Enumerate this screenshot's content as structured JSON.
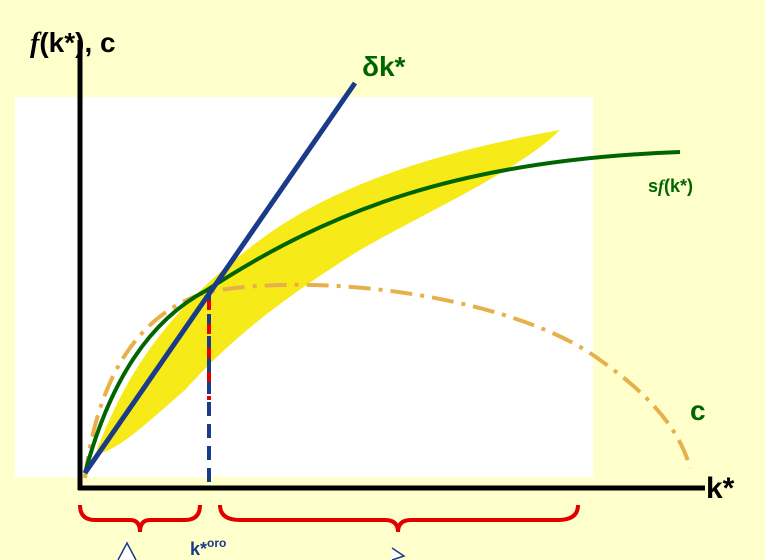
{
  "diagram": {
    "y_axis_label": [
      "f",
      "(k*), c"
    ],
    "x_axis_label": "k*",
    "line_label": "δk*",
    "curve_label": [
      "s",
      "f",
      "(k*)"
    ],
    "consumption_label": "c",
    "golden_label": [
      "k*",
      "oro"
    ]
  }
}
